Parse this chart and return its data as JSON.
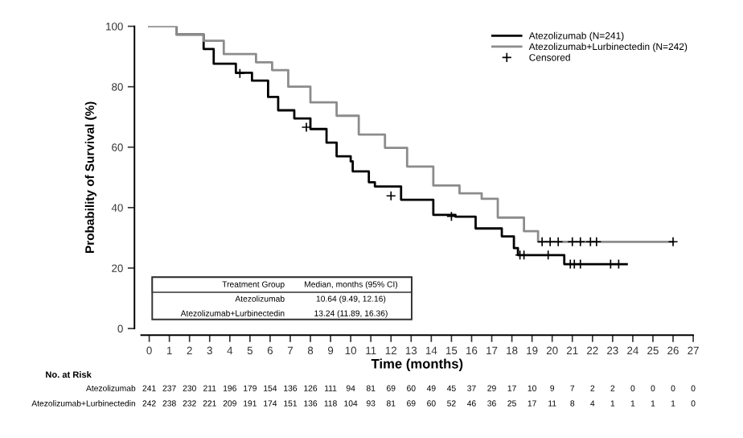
{
  "chart_data": {
    "type": "step",
    "xlabel": "Time (months)",
    "ylabel": "Probability of Survival (%)",
    "xlim": [
      -0.4,
      27
    ],
    "xticks": [
      0,
      1,
      2,
      3,
      4,
      5,
      6,
      7,
      8,
      9,
      10,
      11,
      12,
      13,
      14,
      15,
      16,
      17,
      18,
      19,
      20,
      21,
      22,
      23,
      24,
      25,
      26,
      27
    ],
    "ylim": [
      0,
      100
    ],
    "yticks": [
      0,
      20,
      40,
      60,
      80,
      100
    ],
    "grid": false,
    "legend": "top right",
    "series": [
      {
        "name": "Atezolizumab (N=241)",
        "color": "#000000",
        "x": [
          0,
          1.35,
          2.7,
          3.2,
          4.3,
          5.1,
          5.9,
          6.4,
          7.2,
          8.0,
          8.8,
          9.3,
          10.0,
          10.1,
          10.9,
          11.2,
          12.5,
          14.1,
          15.2,
          16.2,
          17.5,
          18.1,
          18.3,
          20.6,
          23.7
        ],
        "values": [
          100,
          97.3,
          92.5,
          87.6,
          84.6,
          82,
          76.6,
          72.2,
          69.5,
          66,
          61.5,
          57,
          55.3,
          52,
          48.4,
          47,
          42.6,
          37.6,
          37,
          33.1,
          30.5,
          26.6,
          24.3,
          21.3,
          21.3
        ]
      },
      {
        "name": "Atezolizumab+Lurbinectedin (N=242)",
        "color": "#8c8c8c",
        "x": [
          0,
          1.35,
          2.7,
          3.7,
          5.3,
          6.1,
          6.9,
          8.0,
          9.3,
          10.4,
          11.7,
          12.8,
          14.1,
          15.4,
          16.5,
          17.3,
          18.6,
          19.3,
          26.0
        ],
        "values": [
          100,
          97.3,
          95.2,
          90.8,
          88.1,
          85.5,
          80,
          74.8,
          70.4,
          64.2,
          59.8,
          53.6,
          47.3,
          44.7,
          42.9,
          36.7,
          32.2,
          28.7,
          28.7
        ]
      },
      {
        "name": "Censored",
        "type": "scatter",
        "marker": "cross",
        "color": "#000000",
        "x": [
          19.5,
          19.9,
          20.3,
          21.0,
          21.4,
          21.9,
          22.2,
          26.0,
          18.4,
          18.6,
          19.8,
          20.9,
          21.1,
          21.4,
          22.9,
          23.3,
          4.5,
          7.8,
          12.0,
          15.0
        ],
        "values": [
          28.7,
          28.7,
          28.7,
          28.7,
          28.7,
          28.7,
          28.7,
          28.7,
          24.3,
          24.3,
          24.3,
          21.3,
          21.3,
          21.3,
          21.3,
          21.3,
          84.4,
          66.6,
          43.9,
          37.1
        ]
      }
    ],
    "annotations": [
      "Treatment Group",
      "Median, months (95% CI)",
      "Atezolizumab",
      "10.64 (9.49, 12.16)",
      "Atezolizumab+Lurbinectedin",
      "13.24 (11.89, 16.36)",
      "No. at Risk",
      "Atezolizumab",
      "241 237 230 211 196 179 154 136 126 111 94 81 69 60 49 45 37 29 17 10 9 7 2 2 0 0 0 0",
      "Atezolizumab+Lurbinectedin",
      "242 238 232 221 209 191 174 151 136 118 104 93 81 69 60 52 46 36 25 17 11 8 4 1 1 1 1 0"
    ]
  }
}
